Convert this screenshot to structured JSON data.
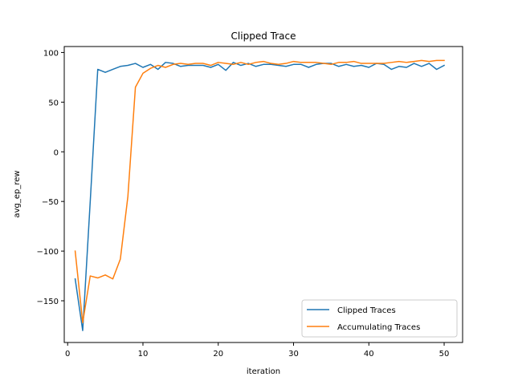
{
  "chart_data": {
    "type": "line",
    "title": "Clipped Trace",
    "xlabel": "iteration",
    "ylabel": "avg_ep_rew",
    "xlim": [
      -0.45,
      52.45
    ],
    "ylim": [
      -192,
      106
    ],
    "xticks": [
      0,
      10,
      20,
      30,
      40,
      50
    ],
    "yticks": [
      -150,
      -100,
      -50,
      0,
      50,
      100
    ],
    "xtick_labels": [
      "0",
      "10",
      "20",
      "30",
      "40",
      "50"
    ],
    "ytick_labels": [
      "−150",
      "−100",
      "−50",
      "0",
      "50",
      "100"
    ],
    "grid": false,
    "legend_position": "lower-right",
    "x": [
      1,
      2,
      3,
      4,
      5,
      6,
      7,
      8,
      9,
      10,
      11,
      12,
      13,
      14,
      15,
      16,
      17,
      18,
      19,
      20,
      21,
      22,
      23,
      24,
      25,
      26,
      27,
      28,
      29,
      30,
      31,
      32,
      33,
      34,
      35,
      36,
      37,
      38,
      39,
      40,
      41,
      42,
      43,
      44,
      45,
      46,
      47,
      48,
      49,
      50
    ],
    "series": [
      {
        "name": "Clipped Traces",
        "color": "#1f77b4",
        "values": [
          -128,
          -180,
          -50,
          83,
          80,
          83,
          86,
          87,
          89,
          85,
          88,
          83,
          90,
          89,
          86,
          87,
          87,
          87,
          85,
          88,
          82,
          90,
          87,
          89,
          86,
          88,
          88,
          87,
          86,
          88,
          88,
          85,
          88,
          89,
          89,
          86,
          88,
          86,
          87,
          85,
          89,
          88,
          83,
          86,
          85,
          89,
          86,
          89,
          83,
          87
        ]
      },
      {
        "name": "Accumulating Traces",
        "color": "#ff7f0e",
        "values": [
          -100,
          -172,
          -125,
          -127,
          -124,
          -128,
          -108,
          -45,
          65,
          79,
          84,
          87,
          85,
          88,
          89,
          88,
          89,
          89,
          87,
          90,
          89,
          88,
          90,
          88,
          90,
          91,
          89,
          88,
          89,
          91,
          90,
          90,
          90,
          89,
          88,
          90,
          90,
          91,
          89,
          89,
          89,
          89,
          90,
          91,
          90,
          91,
          92,
          91,
          92,
          92
        ]
      }
    ]
  }
}
